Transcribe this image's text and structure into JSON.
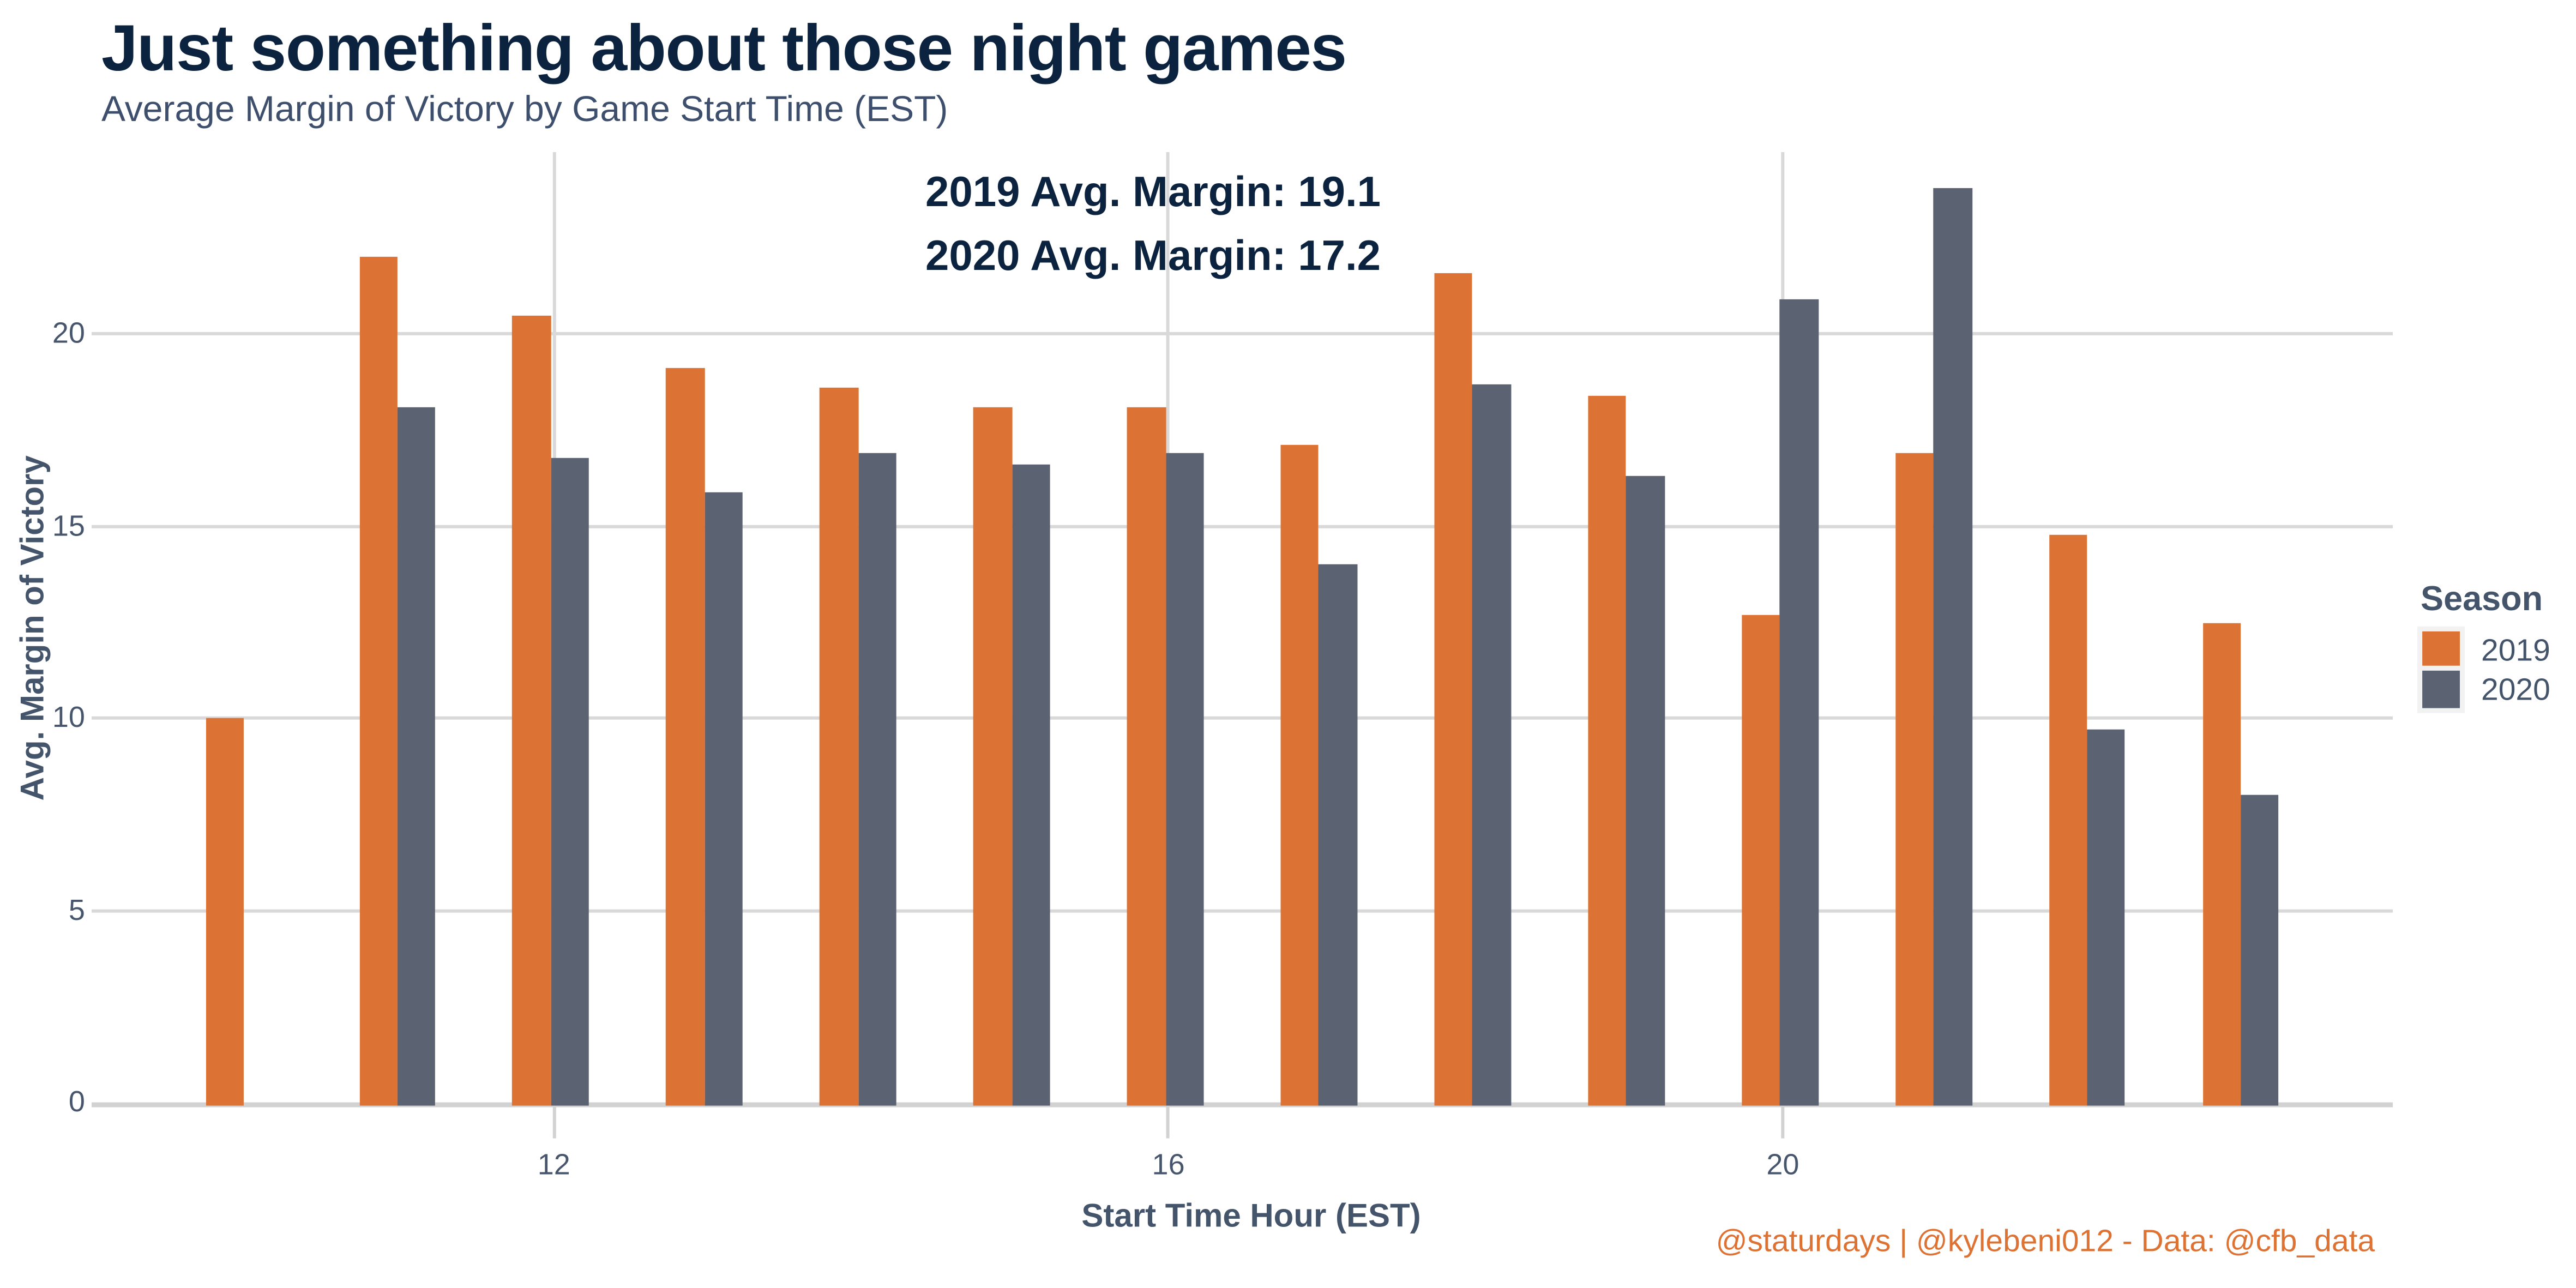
{
  "header": {
    "title": "Just something about those night games",
    "subtitle": "Average Margin of Victory by Game Start Time (EST)"
  },
  "annotations": {
    "line1": "2019 Avg. Margin: 19.1",
    "line2": "2020 Avg. Margin: 17.2"
  },
  "legend": {
    "title": "Season",
    "entries": [
      {
        "label": "2019",
        "color": "#dc7335"
      },
      {
        "label": "2020",
        "color": "#5b6272"
      }
    ]
  },
  "caption": "@staturdays | @kylebeni012 - Data: @cfb_data",
  "colors": {
    "bar_2019": "#dc7335",
    "bar_2020": "#5b6272",
    "title": "#0c2340",
    "subtitle": "#3d4f6d",
    "annotation": "#0c2340",
    "axis_text": "#44546a",
    "tick_text": "#47566c",
    "gridline": "#d9d9d9",
    "axis_line": "#d2d2d2",
    "caption": "#dd7233",
    "legend_text": "#44546a"
  },
  "chart_data": {
    "type": "bar",
    "title": "Just something about those night games",
    "subtitle": "Average Margin of Victory by Game Start Time (EST)",
    "xlabel": "Start Time Hour (EST)",
    "ylabel": "Avg. Margin of Victory",
    "categories": [
      10,
      11,
      12,
      13,
      14,
      15,
      16,
      17,
      18,
      19,
      20,
      21,
      22,
      23
    ],
    "series": [
      {
        "name": "2019",
        "color": "#dc7335",
        "values": [
          10.0,
          22.0,
          20.5,
          19.1,
          18.6,
          18.1,
          18.1,
          17.1,
          21.6,
          18.4,
          12.7,
          16.9,
          14.8,
          12.5
        ]
      },
      {
        "name": "2020",
        "color": "#5b6272",
        "values": [
          null,
          18.1,
          16.8,
          15.9,
          16.9,
          16.6,
          16.9,
          14.0,
          18.7,
          16.3,
          20.9,
          23.8,
          9.7,
          8.0
        ]
      }
    ],
    "xticks": [
      12,
      16,
      20
    ],
    "yticks": [
      0,
      5,
      10,
      15,
      20
    ],
    "ylim": [
      0,
      24.7
    ],
    "grid": true,
    "legend_position": "right"
  }
}
